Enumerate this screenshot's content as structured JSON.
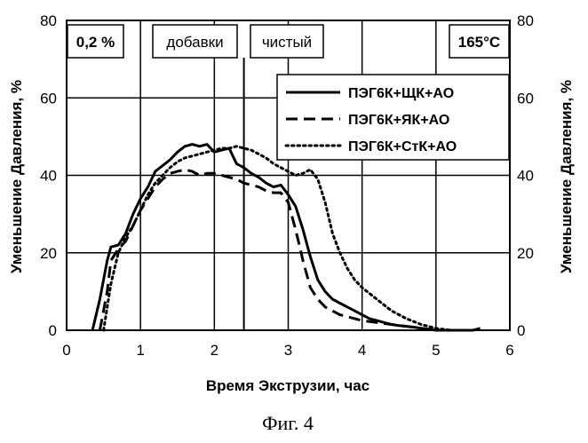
{
  "chart_data": {
    "type": "line",
    "xlabel": "Время Экструзии, час",
    "ylabel_left": "Уменьшение Давления, %",
    "ylabel_right": "Уменьшение Давления, %",
    "xlim": [
      0,
      6
    ],
    "ylim": [
      0,
      80
    ],
    "x_ticks": [
      "0",
      "1",
      "2",
      "3",
      "4",
      "5",
      "6"
    ],
    "y_ticks": [
      "0",
      "20",
      "40",
      "60",
      "80"
    ],
    "grid": "vertical lines at each x tick; horizontal lines at 20, 40, 60",
    "legend_position": "top-right",
    "annotations": {
      "concentration": "0,2 %",
      "additives": "добавки",
      "clean": "чистый",
      "temperature": "165°C"
    },
    "phase_boundary_x": 2.4,
    "caption": "Фиг. 4",
    "series": [
      {
        "name": "ПЭГ6К+ЩК+АО",
        "style": "solid",
        "x": [
          0.35,
          0.45,
          0.55,
          0.6,
          0.7,
          0.8,
          0.9,
          1.0,
          1.1,
          1.2,
          1.3,
          1.4,
          1.5,
          1.6,
          1.7,
          1.8,
          1.9,
          2.0,
          2.1,
          2.2,
          2.3,
          2.4,
          2.5,
          2.6,
          2.7,
          2.8,
          2.9,
          3.0,
          3.1,
          3.2,
          3.3,
          3.4,
          3.5,
          3.6,
          3.7,
          3.8,
          3.9,
          4.0,
          4.1,
          4.2,
          4.3,
          4.4,
          4.5,
          4.6,
          4.7,
          4.8,
          4.9,
          5.0,
          5.5,
          5.6
        ],
        "values": [
          0,
          8,
          18,
          21.5,
          22,
          25,
          30,
          34,
          37,
          41,
          42.5,
          44,
          46,
          47.5,
          48,
          47.5,
          48,
          46,
          46.5,
          47,
          43,
          42,
          40.5,
          39.5,
          38,
          37,
          37.5,
          35,
          32,
          26,
          19,
          13,
          10,
          8,
          7,
          6,
          5,
          4,
          3,
          2.5,
          2,
          1.5,
          1.2,
          1,
          0.8,
          0.5,
          0.3,
          0,
          0,
          0.5
        ]
      },
      {
        "name": "ПЭГ6К+ЯК+АО",
        "style": "dashed",
        "x": [
          0.45,
          0.55,
          0.6,
          0.7,
          0.8,
          0.9,
          1.0,
          1.1,
          1.2,
          1.3,
          1.4,
          1.5,
          1.6,
          1.7,
          1.8,
          1.9,
          2.0,
          2.1,
          2.2,
          2.3,
          2.4,
          2.5,
          2.6,
          2.7,
          2.8,
          2.9,
          3.0,
          3.1,
          3.2,
          3.3,
          3.4,
          3.5,
          3.6,
          3.7,
          3.8,
          3.9,
          4.0,
          4.2,
          4.4,
          4.6,
          4.8,
          5.0
        ],
        "values": [
          0,
          10,
          18,
          21,
          23,
          27,
          31,
          34,
          37,
          39,
          40.5,
          41,
          41.5,
          41,
          40,
          40.5,
          40.5,
          40,
          39.5,
          39,
          38,
          37.5,
          37,
          36,
          35.5,
          35.5,
          33,
          26,
          18,
          11,
          8,
          6,
          5,
          4,
          3.5,
          3,
          2.5,
          2,
          1.5,
          1,
          0.5,
          0
        ]
      },
      {
        "name": "ПЭГ6К+СтК+АО",
        "style": "dotted",
        "x": [
          0.5,
          0.6,
          0.7,
          0.8,
          0.9,
          1.0,
          1.1,
          1.2,
          1.3,
          1.4,
          1.5,
          1.6,
          1.7,
          1.8,
          1.9,
          2.0,
          2.1,
          2.2,
          2.3,
          2.4,
          2.5,
          2.6,
          2.7,
          2.8,
          2.9,
          3.0,
          3.1,
          3.2,
          3.3,
          3.4,
          3.5,
          3.6,
          3.7,
          3.8,
          3.9,
          4.0,
          4.2,
          4.4,
          4.6,
          4.8,
          5.0,
          5.2
        ],
        "values": [
          0,
          12,
          20,
          24,
          27,
          31,
          35,
          38,
          40,
          42,
          43.5,
          44.5,
          45,
          45.5,
          46,
          46.5,
          47,
          47,
          47.5,
          47,
          46.5,
          45.5,
          44.5,
          43,
          42,
          41,
          40,
          40.5,
          41.5,
          39,
          33,
          25,
          20,
          16,
          13,
          11,
          8,
          5,
          3,
          1.5,
          0.5,
          0
        ]
      }
    ]
  }
}
